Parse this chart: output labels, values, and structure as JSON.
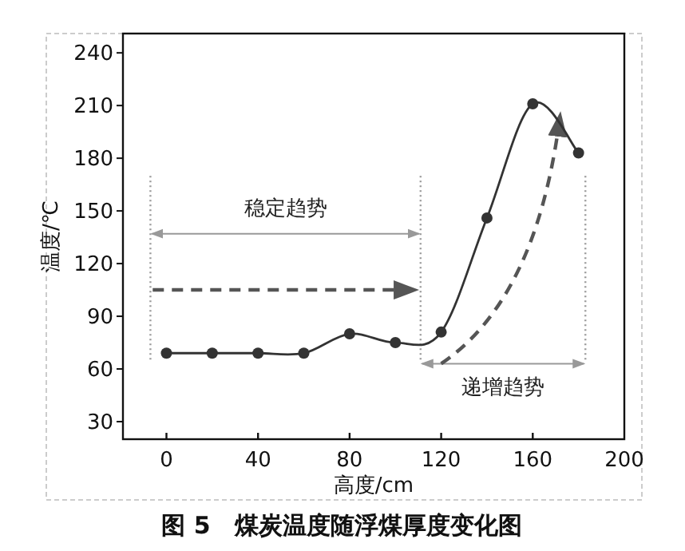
{
  "chart_data": {
    "type": "line",
    "title": "图 5　煤炭温度随浮煤厚度变化图",
    "xlabel": "高度/cm",
    "ylabel": "温度/℃",
    "x": [
      0,
      20,
      40,
      60,
      80,
      100,
      120,
      140,
      160,
      180
    ],
    "series": [
      {
        "color": "#333333",
        "values": [
          69,
          69,
          69,
          69,
          80,
          75,
          81,
          146,
          211,
          183
        ]
      }
    ],
    "xlim": [
      -19,
      200
    ],
    "ylim": [
      20,
      251
    ],
    "xticks": [
      0,
      40,
      80,
      120,
      160,
      200
    ],
    "yticks": [
      30,
      60,
      90,
      120,
      150,
      180,
      210,
      240
    ],
    "ref_lines": [
      {
        "axis": "x",
        "value": -7,
        "color": "#999999",
        "line_style": "dotted"
      },
      {
        "axis": "x",
        "value": 111,
        "color": "#999999",
        "line_style": "dotted"
      },
      {
        "axis": "x",
        "value": 183,
        "color": "#999999",
        "line_style": "dotted"
      }
    ],
    "annotations": [
      "稳定趋势",
      "递增趋势"
    ],
    "marker": "circle",
    "line_style": "solid",
    "grid": false
  }
}
